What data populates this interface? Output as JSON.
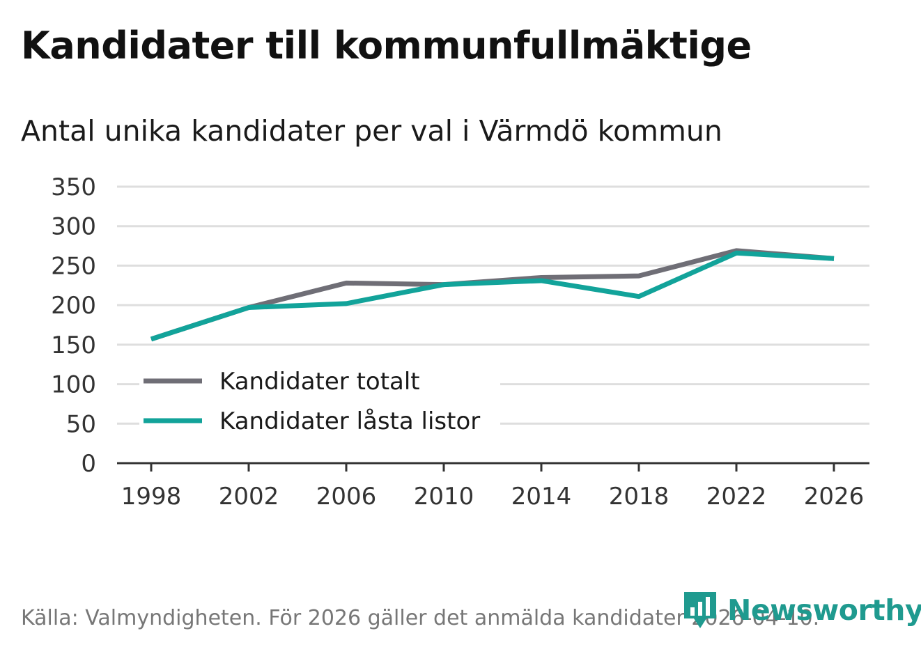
{
  "chart_data": {
    "type": "line",
    "title": "Kandidater till kommunfullmäktige",
    "subtitle": "Antal unika kandidater per val i Värmdö kommun",
    "x": [
      1998,
      2002,
      2006,
      2010,
      2014,
      2018,
      2022,
      2026
    ],
    "x_tick_labels": [
      "1998",
      "2002",
      "2006",
      "2010",
      "2014",
      "2018",
      "2022",
      "2026"
    ],
    "y_tick_labels": [
      "0",
      "50",
      "100",
      "150",
      "200",
      "250",
      "300",
      "350"
    ],
    "ylim": [
      0,
      350
    ],
    "grid": true,
    "legend_position": "bottom-left",
    "series": [
      {
        "name": "Kandidater totalt",
        "color": "#6f6e76",
        "values": [
          157,
          197,
          228,
          226,
          235,
          237,
          269,
          259
        ]
      },
      {
        "name": "Kandidater låsta listor",
        "color": "#12a39a",
        "values": [
          157,
          197,
          202,
          226,
          231,
          211,
          266,
          259
        ]
      }
    ],
    "source": "Källa: Valmyndigheten. För 2026 gäller det anmälda kandidater 2026-04-10."
  },
  "brand": {
    "name": "Newsworthy",
    "color": "#1f9a8f"
  }
}
